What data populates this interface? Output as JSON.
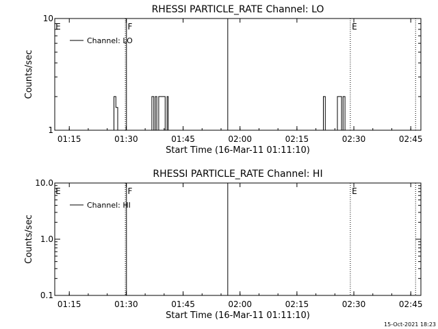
{
  "chart_data": [
    {
      "type": "line",
      "title": "RHESSI PARTICLE_RATE Channel: LO",
      "xlabel": "Start Time (16-Mar-11 01:11:10)",
      "ylabel": "Counts/sec",
      "x_unit": "minutes after 01:11:10",
      "xlim": [
        0,
        96.5
      ],
      "y_scale": "log",
      "ylim": [
        1,
        10
      ],
      "y_ticks": [
        {
          "value": 1,
          "label": "1"
        },
        {
          "value": 10,
          "label": "10"
        }
      ],
      "x_ticks": [
        {
          "value": 3.83,
          "label": "01:15"
        },
        {
          "value": 18.83,
          "label": "01:30"
        },
        {
          "value": 33.83,
          "label": "01:45"
        },
        {
          "value": 48.83,
          "label": "02:00"
        },
        {
          "value": 63.83,
          "label": "02:15"
        },
        {
          "value": 78.83,
          "label": "02:30"
        },
        {
          "value": 93.83,
          "label": "02:45"
        }
      ],
      "legend": {
        "position": "top-left",
        "entries": [
          "Channel: LO"
        ]
      },
      "series": [
        {
          "name": "Channel: LO",
          "x": [
            15.6,
            15.6,
            16.1,
            16.1,
            16.6,
            16.6,
            25.6,
            25.6,
            26.1,
            26.1,
            26.5,
            26.5,
            26.9,
            26.9,
            27.4,
            27.4,
            29.1,
            29.1,
            29.6,
            29.6,
            29.9,
            29.9,
            30.4,
            30.4,
            70.8,
            70.8,
            71.3,
            71.3,
            74.5,
            74.5,
            75.6,
            75.6,
            76.0,
            76.0,
            76.5,
            76.5
          ],
          "y": [
            1,
            2,
            2,
            1.6,
            1.6,
            1,
            1,
            2,
            2,
            1,
            1,
            2,
            2,
            1,
            1,
            2,
            2,
            1,
            1,
            2,
            2,
            1,
            1,
            1,
            1,
            2,
            2,
            1,
            1,
            2,
            2,
            1,
            1,
            2,
            2,
            1
          ]
        }
      ],
      "vlines": [
        {
          "x": 18.6,
          "style": "dotted"
        },
        {
          "x": 18.9,
          "style": "solid"
        },
        {
          "x": 45.6,
          "style": "solid"
        },
        {
          "x": 77.9,
          "style": "dotted"
        },
        {
          "x": 95.1,
          "style": "dotted"
        }
      ],
      "annotations": [
        {
          "text": "E",
          "x": 0.2
        },
        {
          "text": "F",
          "x": 19.2
        },
        {
          "text": "E",
          "x": 78.3
        }
      ]
    },
    {
      "type": "line",
      "title": "RHESSI PARTICLE_RATE Channel: HI",
      "xlabel": "Start Time (16-Mar-11 01:11:10)",
      "ylabel": "Counts/sec",
      "x_unit": "minutes after 01:11:10",
      "xlim": [
        0,
        96.5
      ],
      "y_scale": "log",
      "ylim": [
        0.1,
        10
      ],
      "y_ticks": [
        {
          "value": 0.1,
          "label": "0.1"
        },
        {
          "value": 1,
          "label": "1.0"
        },
        {
          "value": 10,
          "label": "10.0"
        }
      ],
      "x_ticks": [
        {
          "value": 3.83,
          "label": "01:15"
        },
        {
          "value": 18.83,
          "label": "01:30"
        },
        {
          "value": 33.83,
          "label": "01:45"
        },
        {
          "value": 48.83,
          "label": "02:00"
        },
        {
          "value": 63.83,
          "label": "02:15"
        },
        {
          "value": 78.83,
          "label": "02:30"
        },
        {
          "value": 93.83,
          "label": "02:45"
        }
      ],
      "legend": {
        "position": "top-left",
        "entries": [
          "Channel: HI"
        ]
      },
      "series": [
        {
          "name": "Channel: HI",
          "x": [],
          "y": []
        }
      ],
      "vlines": [
        {
          "x": 18.6,
          "style": "dotted"
        },
        {
          "x": 18.9,
          "style": "solid"
        },
        {
          "x": 45.6,
          "style": "solid"
        },
        {
          "x": 77.9,
          "style": "dotted"
        },
        {
          "x": 95.1,
          "style": "dotted"
        }
      ],
      "annotations": [
        {
          "text": "E",
          "x": 0.2
        },
        {
          "text": "F",
          "x": 19.2
        },
        {
          "text": "E",
          "x": 78.3
        }
      ]
    }
  ],
  "footer": {
    "timestamp": "15-Oct-2021 18:23"
  }
}
